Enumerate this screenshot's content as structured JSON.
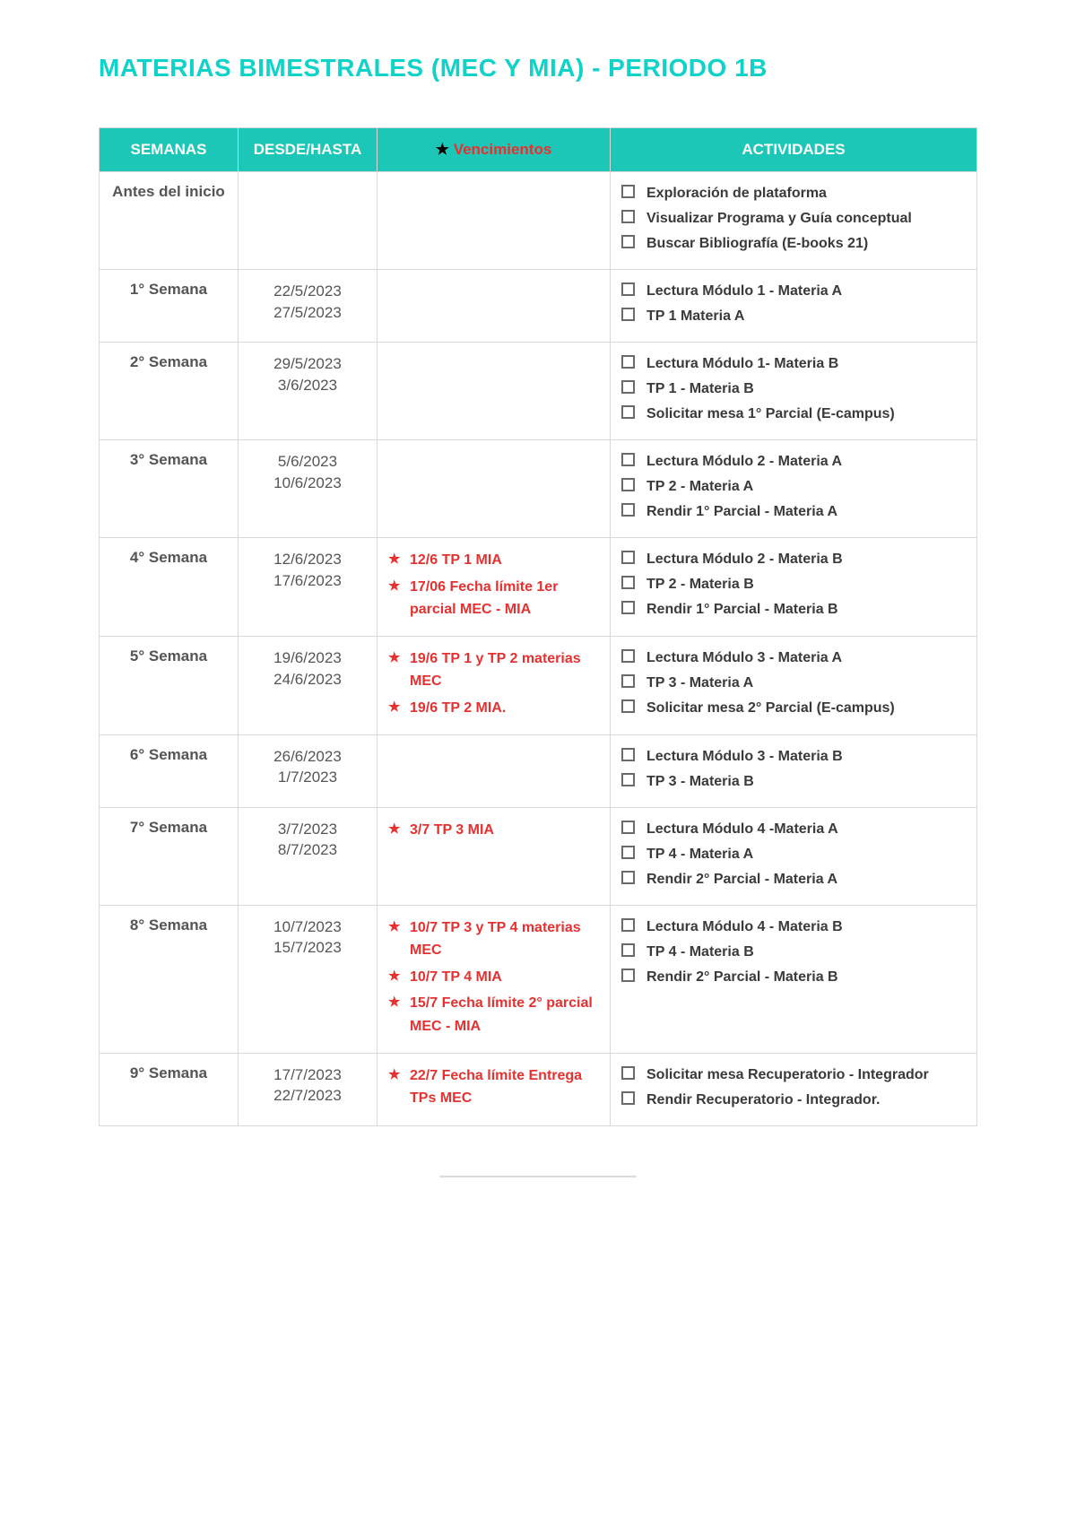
{
  "title": "MATERIAS BIMESTRALES (MEC Y MIA) - PERIODO 1B",
  "headers": {
    "semanas": "SEMANAS",
    "desde_hasta": "DESDE/HASTA",
    "vencimientos_star": "★",
    "vencimientos_label": "Vencimientos",
    "actividades": "ACTIVIDADES"
  },
  "colors": {
    "title": "#0fd3c9",
    "header_bg": "#1cc7b8",
    "header_text": "#ffffff",
    "venc_text": "#e63131",
    "border": "#d9d9d9",
    "body_text": "#3a3a3a",
    "week_text": "#7a7a7a"
  },
  "rows": [
    {
      "week": "Antes del inicio",
      "dates": [],
      "venc": [],
      "acts": [
        "Exploración de plataforma",
        "Visualizar Programa y Guía conceptual",
        "Buscar Bibliografía (E-books 21)"
      ]
    },
    {
      "week": "1° Semana",
      "dates": [
        "22/5/2023",
        "27/5/2023"
      ],
      "venc": [],
      "acts": [
        "Lectura Módulo 1 - Materia A",
        "TP 1  Materia A"
      ]
    },
    {
      "week": "2° Semana",
      "dates": [
        "29/5/2023",
        "3/6/2023"
      ],
      "venc": [],
      "acts": [
        "Lectura Módulo 1-  Materia B",
        "TP 1 - Materia B",
        "Solicitar mesa 1° Parcial (E-campus)"
      ]
    },
    {
      "week": "3° Semana",
      "dates": [
        "5/6/2023",
        "10/6/2023"
      ],
      "venc": [],
      "acts": [
        "Lectura Módulo 2 - Materia A",
        "TP 2 - Materia A",
        "Rendir 1° Parcial - Materia A"
      ]
    },
    {
      "week": "4° Semana",
      "dates": [
        "12/6/2023",
        "17/6/2023"
      ],
      "venc": [
        "12/6 TP 1 MIA",
        "17/06 Fecha límite 1er parcial MEC - MIA"
      ],
      "acts": [
        "Lectura Módulo 2 - Materia B",
        "TP 2 - Materia B",
        "Rendir 1° Parcial - Materia B"
      ]
    },
    {
      "week": "5° Semana",
      "dates": [
        "19/6/2023",
        "24/6/2023"
      ],
      "venc": [
        "19/6 TP 1 y TP 2 materias MEC",
        "19/6 TP 2  MIA."
      ],
      "acts": [
        "Lectura Módulo 3 - Materia A",
        "TP 3 - Materia A",
        "Solicitar mesa 2° Parcial (E-campus)"
      ]
    },
    {
      "week": "6° Semana",
      "dates": [
        "26/6/2023",
        "1/7/2023"
      ],
      "venc": [],
      "acts": [
        "Lectura Módulo 3 - Materia B",
        "TP 3 - Materia B"
      ]
    },
    {
      "week": "7° Semana",
      "dates": [
        "3/7/2023",
        "8/7/2023"
      ],
      "venc": [
        "3/7  TP 3 MIA"
      ],
      "acts": [
        "Lectura Módulo 4 -Materia A",
        "TP 4 - Materia A",
        "Rendir 2° Parcial - Materia A"
      ]
    },
    {
      "week": "8° Semana",
      "dates": [
        "10/7/2023",
        "15/7/2023"
      ],
      "venc": [
        "10/7 TP 3 y TP 4 materias MEC",
        "10/7 TP 4 MIA",
        "15/7 Fecha límite 2° parcial MEC - MIA"
      ],
      "acts": [
        "Lectura Módulo 4 - Materia B",
        "TP 4 - Materia B",
        "Rendir 2° Parcial - Materia B"
      ]
    },
    {
      "week": "9° Semana",
      "dates": [
        "17/7/2023",
        "22/7/2023"
      ],
      "venc": [
        "22/7 Fecha límite Entrega TPs MEC"
      ],
      "acts": [
        "Solicitar mesa Recuperatorio - Integrador",
        "Rendir Recuperatorio - Integrador."
      ]
    }
  ]
}
